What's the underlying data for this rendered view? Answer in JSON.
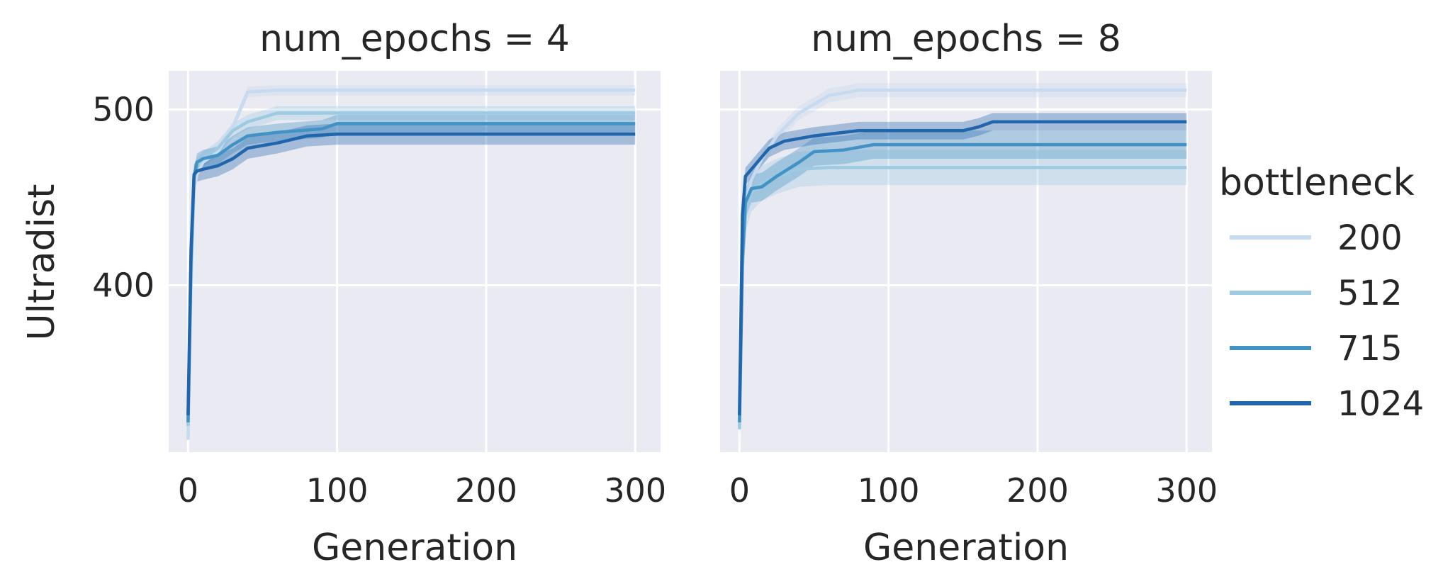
{
  "chart_data": {
    "type": "line",
    "ylabel": "Ultradist",
    "xlabel": "Generation",
    "xlim": [
      -13,
      317
    ],
    "ylim": [
      305,
      522
    ],
    "xticks": [
      0,
      100,
      200,
      300
    ],
    "yticks": [
      400,
      500
    ],
    "grid": true,
    "legend": {
      "title": "bottleneck",
      "placement": "right",
      "entries": [
        "200",
        "512",
        "715",
        "1024"
      ]
    },
    "series_colors": {
      "200": "#c6dbef",
      "512": "#9ecae1",
      "715": "#4292c6",
      "1024": "#2166ac"
    },
    "panels": [
      {
        "title": "num_epochs = 4",
        "series": [
          {
            "name": "200",
            "band": 3,
            "points": [
              [
                0,
                312
              ],
              [
                2,
                400
              ],
              [
                4,
                455
              ],
              [
                6,
                463
              ],
              [
                10,
                470
              ],
              [
                20,
                476
              ],
              [
                30,
                490
              ],
              [
                40,
                510
              ],
              [
                60,
                511
              ],
              [
                100,
                511
              ],
              [
                200,
                511
              ],
              [
                300,
                511
              ]
            ]
          },
          {
            "name": "512",
            "band": 4,
            "points": [
              [
                0,
                320
              ],
              [
                2,
                410
              ],
              [
                4,
                460
              ],
              [
                6,
                468
              ],
              [
                10,
                472
              ],
              [
                20,
                478
              ],
              [
                30,
                488
              ],
              [
                40,
                493
              ],
              [
                60,
                498
              ],
              [
                100,
                498
              ],
              [
                200,
                498
              ],
              [
                300,
                498
              ]
            ]
          },
          {
            "name": "715",
            "band": 5,
            "points": [
              [
                0,
                322
              ],
              [
                2,
                415
              ],
              [
                4,
                462
              ],
              [
                6,
                470
              ],
              [
                10,
                472
              ],
              [
                20,
                474
              ],
              [
                30,
                480
              ],
              [
                40,
                485
              ],
              [
                60,
                487
              ],
              [
                90,
                489
              ],
              [
                100,
                492
              ],
              [
                200,
                492
              ],
              [
                300,
                492
              ]
            ]
          },
          {
            "name": "1024",
            "band": 6,
            "points": [
              [
                0,
                326
              ],
              [
                2,
                420
              ],
              [
                4,
                463
              ],
              [
                6,
                465
              ],
              [
                10,
                466
              ],
              [
                20,
                468
              ],
              [
                30,
                472
              ],
              [
                40,
                478
              ],
              [
                60,
                481
              ],
              [
                80,
                485
              ],
              [
                100,
                486
              ],
              [
                200,
                486
              ],
              [
                300,
                486
              ]
            ]
          }
        ]
      },
      {
        "title": "num_epochs = 8",
        "series": [
          {
            "name": "200",
            "band": 4,
            "points": [
              [
                0,
                320
              ],
              [
                2,
                420
              ],
              [
                4,
                445
              ],
              [
                8,
                460
              ],
              [
                15,
                472
              ],
              [
                25,
                485
              ],
              [
                40,
                498
              ],
              [
                60,
                508
              ],
              [
                80,
                511
              ],
              [
                100,
                511
              ],
              [
                200,
                511
              ],
              [
                300,
                511
              ]
            ]
          },
          {
            "name": "512",
            "band": 10,
            "points": [
              [
                0,
                318
              ],
              [
                2,
                410
              ],
              [
                4,
                440
              ],
              [
                8,
                452
              ],
              [
                15,
                458
              ],
              [
                25,
                462
              ],
              [
                40,
                466
              ],
              [
                60,
                467
              ],
              [
                100,
                467
              ],
              [
                200,
                467
              ],
              [
                300,
                467
              ]
            ]
          },
          {
            "name": "715",
            "band": 8,
            "points": [
              [
                0,
                322
              ],
              [
                2,
                415
              ],
              [
                4,
                447
              ],
              [
                8,
                455
              ],
              [
                15,
                456
              ],
              [
                25,
                462
              ],
              [
                40,
                470
              ],
              [
                50,
                476
              ],
              [
                70,
                477
              ],
              [
                90,
                480
              ],
              [
                100,
                480
              ],
              [
                200,
                480
              ],
              [
                300,
                480
              ]
            ]
          },
          {
            "name": "1024",
            "band": 5,
            "points": [
              [
                0,
                326
              ],
              [
                2,
                440
              ],
              [
                4,
                462
              ],
              [
                8,
                466
              ],
              [
                12,
                470
              ],
              [
                20,
                478
              ],
              [
                30,
                482
              ],
              [
                50,
                485
              ],
              [
                80,
                488
              ],
              [
                100,
                488
              ],
              [
                150,
                488
              ],
              [
                160,
                490
              ],
              [
                170,
                493
              ],
              [
                200,
                493
              ],
              [
                300,
                493
              ]
            ]
          }
        ]
      }
    ]
  }
}
